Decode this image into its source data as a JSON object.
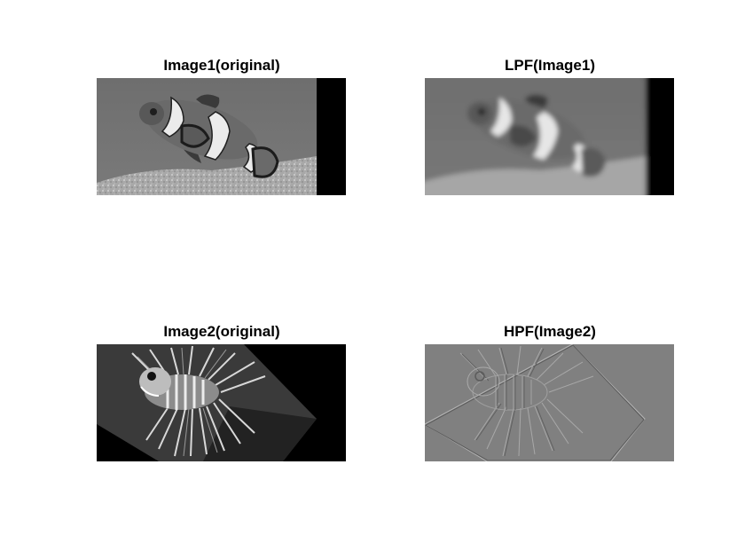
{
  "figure": {
    "panels": [
      {
        "title": "Image1(original)",
        "kind": "clownfish",
        "filter": "none",
        "tone": "grayscale"
      },
      {
        "title": "LPF(Image1)",
        "kind": "clownfish",
        "filter": "low-pass (blur)",
        "tone": "grayscale"
      },
      {
        "title": "Image2(original)",
        "kind": "lionfish",
        "filter": "none",
        "tone": "grayscale"
      },
      {
        "title": "HPF(Image2)",
        "kind": "lionfish",
        "filter": "high-pass (edges)",
        "tone": "grayscale"
      }
    ]
  }
}
